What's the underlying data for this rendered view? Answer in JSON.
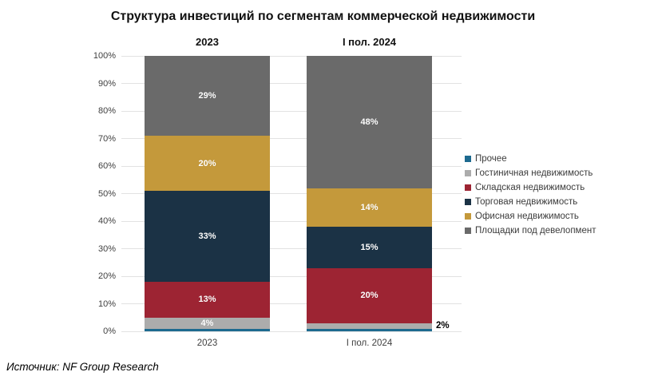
{
  "title": "Структура инвестиций по сегментам коммерческой недвижимости",
  "source": "Источник: NF Group Research",
  "chart_data": {
    "type": "bar",
    "stacked": true,
    "orientation": "vertical",
    "categories": [
      "2023",
      "I пол. 2024"
    ],
    "series": [
      {
        "name": "Прочее",
        "color": "#1d6a8f",
        "values": [
          1,
          1
        ],
        "labels": [
          "",
          ""
        ]
      },
      {
        "name": "Гостиничная недвижимость",
        "color": "#acacac",
        "values": [
          4,
          2
        ],
        "labels": [
          "4%",
          "2%"
        ],
        "label_outside": [
          false,
          true
        ]
      },
      {
        "name": "Складская недвижимость",
        "color": "#9d2433",
        "values": [
          13,
          20
        ],
        "labels": [
          "13%",
          "20%"
        ]
      },
      {
        "name": "Торговая недвижимость",
        "color": "#1b3245",
        "values": [
          33,
          15
        ],
        "labels": [
          "33%",
          "15%"
        ]
      },
      {
        "name": "Офисная недвижимость",
        "color": "#c4993b",
        "values": [
          20,
          14
        ],
        "labels": [
          "20%",
          "14%"
        ]
      },
      {
        "name": "Площадки под девелопмент",
        "color": "#6a6a6a",
        "values": [
          29,
          48
        ],
        "labels": [
          "29%",
          "48%"
        ]
      }
    ],
    "ylim": [
      0,
      100
    ],
    "yticks": [
      "0%",
      "10%",
      "20%",
      "30%",
      "40%",
      "50%",
      "60%",
      "70%",
      "80%",
      "90%",
      "100%"
    ],
    "grid": true,
    "gridline_color": "#e2e2e2",
    "legend_position": "right",
    "value_label_color": "#ffffff"
  }
}
